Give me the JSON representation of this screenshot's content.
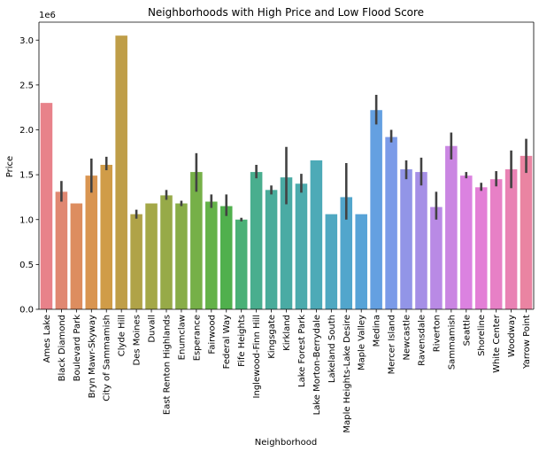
{
  "chart_data": {
    "type": "bar",
    "title": "Neighborhoods with High Price and Low Flood Score",
    "xlabel": "Neighborhood",
    "ylabel": "Price",
    "y_scale_label": "1e6",
    "ylim": [
      0,
      3.2
    ],
    "yticks": [
      "0.0",
      "0.5",
      "1.0",
      "1.5",
      "2.0",
      "2.5",
      "3.0"
    ],
    "grid": false,
    "categories": [
      "Ames Lake",
      "Black Diamond",
      "Boulevard Park",
      "Bryn Mawr-Skyway",
      "City of Sammamish",
      "Clyde Hill",
      "Des Moines",
      "Duvall",
      "East Renton Highlands",
      "Enumclaw",
      "Esperance",
      "Fairwood",
      "Federal Way",
      "Fife Heights",
      "Inglewood-Finn Hill",
      "Kingsgate",
      "Kirkland",
      "Lake Forest Park",
      "Lake Morton-Berrydale",
      "Lakeland South",
      "Maple Heights-Lake Desire",
      "Maple Valley",
      "Medina",
      "Mercer Island",
      "Newcastle",
      "Ravensdale",
      "Riverton",
      "Sammamish",
      "Seattle",
      "Shoreline",
      "White Center",
      "Woodway",
      "Yarrow Point"
    ],
    "values": [
      2.3,
      1.31,
      1.18,
      1.49,
      1.61,
      3.05,
      1.06,
      1.18,
      1.27,
      1.18,
      1.53,
      1.2,
      1.15,
      1.0,
      1.53,
      1.33,
      1.47,
      1.4,
      1.66,
      1.06,
      1.25,
      1.06,
      2.22,
      1.92,
      1.56,
      1.53,
      1.14,
      1.82,
      1.49,
      1.36,
      1.45,
      1.56,
      1.71
    ],
    "error_low": [
      null,
      1.2,
      null,
      1.3,
      1.55,
      null,
      1.01,
      null,
      1.22,
      1.15,
      1.31,
      1.13,
      1.04,
      0.98,
      1.46,
      1.28,
      1.17,
      1.3,
      null,
      null,
      1.0,
      null,
      2.06,
      1.86,
      1.45,
      1.38,
      1.0,
      1.67,
      1.46,
      1.32,
      1.37,
      1.35,
      1.52
    ],
    "error_high": [
      null,
      1.43,
      null,
      1.68,
      1.7,
      null,
      1.11,
      null,
      1.33,
      1.21,
      1.74,
      1.28,
      1.28,
      1.02,
      1.61,
      1.38,
      1.81,
      1.51,
      null,
      null,
      1.63,
      null,
      2.39,
      2.0,
      1.66,
      1.69,
      1.31,
      1.97,
      1.53,
      1.41,
      1.54,
      1.77,
      1.9
    ],
    "colors": [
      "#e8828a",
      "#e08872",
      "#dd8d5f",
      "#d99551",
      "#d09c48",
      "#bf9e48",
      "#b0a348",
      "#a4a848",
      "#97aa48",
      "#88ad48",
      "#76b048",
      "#64b249",
      "#50b04d",
      "#4ab077",
      "#49ae8e",
      "#49ac9a",
      "#4aaba4",
      "#4cabad",
      "#4daab7",
      "#4fa8c1",
      "#52a6cc",
      "#57a3d7",
      "#64a0e1",
      "#7b9be8",
      "#9295e7",
      "#a58fe6",
      "#b98ae5",
      "#ca86e2",
      "#db82e0",
      "#e37fd6",
      "#e780c6",
      "#e982b4",
      "#ea84a2"
    ],
    "error_color": "#424242"
  }
}
